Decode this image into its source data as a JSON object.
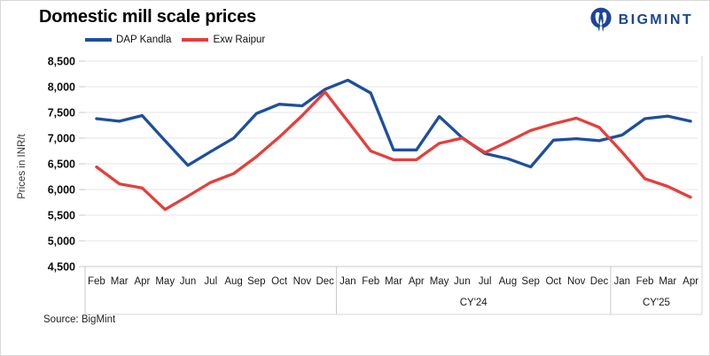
{
  "header": {
    "title": "Domestic mill scale prices",
    "brand_name": "BIGMINT",
    "brand_color": "#1b4596"
  },
  "legend": [
    {
      "label": "DAP Kandla",
      "color": "#1d4f9e"
    },
    {
      "label": "Exw Raipur",
      "color": "#e63e3b"
    }
  ],
  "chart_data": {
    "type": "line",
    "title": "Domestic mill scale prices",
    "xlabel": "",
    "ylabel": "Prices in INR/t",
    "ylim": [
      4500,
      8500
    ],
    "ytick_step": 500,
    "yticklabels": [
      "4,500",
      "5,000",
      "5,500",
      "6,000",
      "6,500",
      "7,000",
      "7,500",
      "8,000",
      "8,500"
    ],
    "grid": true,
    "legend_position": "top",
    "x_groups": [
      {
        "label": "",
        "months": [
          "Feb",
          "Mar",
          "Apr",
          "May",
          "Jun",
          "Jul",
          "Aug",
          "Sep",
          "Oct",
          "Nov",
          "Dec"
        ]
      },
      {
        "label": "CY'24",
        "months": [
          "Jan",
          "Feb",
          "Mar",
          "Apr",
          "May",
          "Jun",
          "Jul",
          "Aug",
          "Sep",
          "Oct",
          "Nov",
          "Dec"
        ]
      },
      {
        "label": "CY'25",
        "months": [
          "Jan",
          "Feb",
          "Mar",
          "Apr"
        ]
      }
    ],
    "series": [
      {
        "name": "DAP Kandla",
        "color": "#1d4f9e",
        "values": [
          7380,
          7330,
          7440,
          6950,
          6470,
          6740,
          7000,
          7480,
          7660,
          7630,
          7950,
          8130,
          7880,
          6770,
          6770,
          7420,
          7010,
          6700,
          6600,
          6440,
          6960,
          6990,
          6950,
          7060,
          7380,
          7430,
          7330
        ]
      },
      {
        "name": "Exw Raipur",
        "color": "#e63e3b",
        "values": [
          6440,
          6110,
          6030,
          5610,
          5870,
          6140,
          6310,
          6640,
          7020,
          7440,
          7900,
          7330,
          6750,
          6580,
          6580,
          6900,
          7000,
          6720,
          6930,
          7150,
          7280,
          7390,
          7210,
          6730,
          6210,
          6060,
          5850
        ]
      }
    ]
  },
  "footer": {
    "source": "Source: BigMint"
  }
}
